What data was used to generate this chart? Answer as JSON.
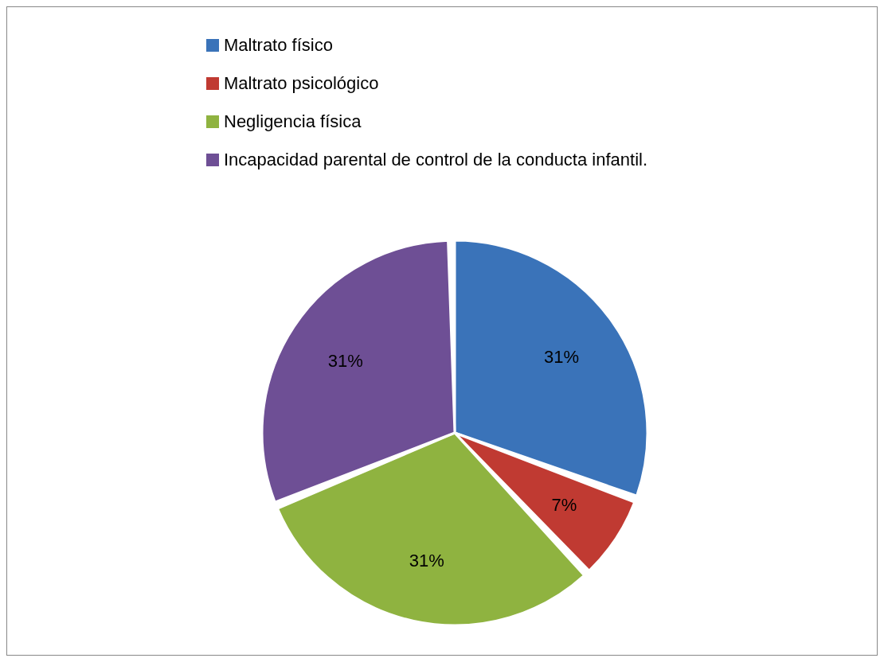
{
  "chart_data": {
    "type": "pie",
    "categories": [
      "Maltrato físico",
      "Maltrato psicológico",
      "Negligencia física",
      "Incapacidad parental de control de la conducta infantil."
    ],
    "values": [
      31,
      7,
      31,
      31
    ],
    "colors": [
      "#3a73b9",
      "#c03a32",
      "#8fb340",
      "#6e4f95"
    ],
    "value_labels": [
      "31%",
      "7%",
      "31%",
      "31%"
    ],
    "legend": "top"
  }
}
